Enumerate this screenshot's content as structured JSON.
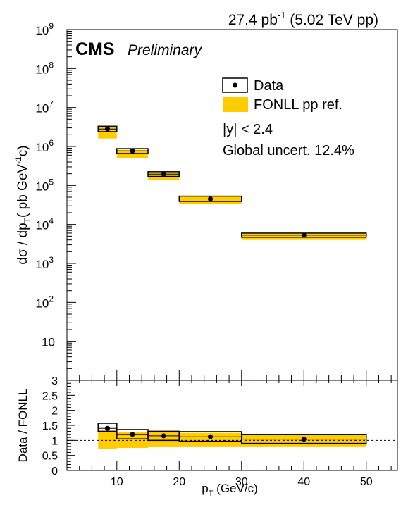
{
  "header": {
    "lumi_main": "27.4 pb",
    "lumi_sup": "-1",
    "lumi_rest": " (5.02 TeV pp)"
  },
  "labels": {
    "cms": "CMS",
    "preliminary": "Preliminary",
    "legend_data": "Data",
    "legend_fonll": "FONLL pp ref.",
    "rapidity": "|y| < 2.4",
    "global_uncert": "Global uncert. 12.4%"
  },
  "colors": {
    "fonll": "#ffcc00",
    "data": "#000000"
  },
  "chart_data": [
    {
      "type": "scatter",
      "name": "cross-section",
      "ylabel_parts": [
        "dσ / dp",
        "T",
        "( pb GeV",
        "-1",
        "c)"
      ],
      "yscale": "log",
      "ylim": [
        1,
        1000000000
      ],
      "xlim": [
        2,
        55
      ],
      "y_tick_labels": [
        "10",
        "10",
        "10",
        "10",
        "10",
        "10",
        "10",
        "10",
        "10"
      ],
      "y_tick_exponents": [
        "",
        "2",
        "3",
        "4",
        "5",
        "6",
        "7",
        "8",
        "9"
      ],
      "bins": [
        {
          "xlo": 7,
          "xhi": 10,
          "x": 8.5,
          "y": 2800000,
          "syst_lo": 2400000,
          "syst_hi": 3300000,
          "fonll_lo": 1600000,
          "fonll_hi": 3200000
        },
        {
          "xlo": 10,
          "xhi": 15,
          "x": 12.5,
          "y": 770000,
          "syst_lo": 660000,
          "syst_hi": 880000,
          "fonll_lo": 500000,
          "fonll_hi": 820000
        },
        {
          "xlo": 15,
          "xhi": 20,
          "x": 17.5,
          "y": 195000,
          "syst_lo": 170000,
          "syst_hi": 225000,
          "fonll_lo": 140000,
          "fonll_hi": 215000
        },
        {
          "xlo": 20,
          "xhi": 30,
          "x": 25,
          "y": 45000,
          "syst_lo": 39000,
          "syst_hi": 53000,
          "fonll_lo": 34000,
          "fonll_hi": 52000
        },
        {
          "xlo": 30,
          "xhi": 50,
          "x": 40,
          "y": 5300,
          "syst_lo": 4700,
          "syst_hi": 6000,
          "fonll_lo": 4000,
          "fonll_hi": 6000
        }
      ]
    },
    {
      "type": "scatter",
      "name": "ratio",
      "xlabel_parts": [
        "p",
        "T",
        " (GeV/c)"
      ],
      "ylabel": "Data / FONLL",
      "ylim": [
        0,
        3
      ],
      "xlim": [
        2,
        55
      ],
      "y_ticks": [
        0,
        0.5,
        1,
        1.5,
        2,
        2.5,
        3
      ],
      "y_tick_labels": [
        "0",
        "0.5",
        "1",
        "1.5",
        "2",
        "2.5",
        "3"
      ],
      "x_ticks": [
        10,
        20,
        30,
        40,
        50
      ],
      "x_tick_labels": [
        "10",
        "20",
        "30",
        "40",
        "50"
      ],
      "reference_line": 1,
      "bins": [
        {
          "xlo": 7,
          "xhi": 10,
          "x": 8.5,
          "y": 1.4,
          "syst_lo": 1.3,
          "syst_hi": 1.57,
          "fonll_lo": 0.72,
          "fonll_hi": 1.36
        },
        {
          "xlo": 10,
          "xhi": 15,
          "x": 12.5,
          "y": 1.2,
          "syst_lo": 1.05,
          "syst_hi": 1.36,
          "fonll_lo": 0.75,
          "fonll_hi": 1.27
        },
        {
          "xlo": 15,
          "xhi": 20,
          "x": 17.5,
          "y": 1.15,
          "syst_lo": 1.0,
          "syst_hi": 1.3,
          "fonll_lo": 0.78,
          "fonll_hi": 1.33
        },
        {
          "xlo": 20,
          "xhi": 30,
          "x": 25,
          "y": 1.12,
          "syst_lo": 0.97,
          "syst_hi": 1.29,
          "fonll_lo": 0.8,
          "fonll_hi": 1.25
        },
        {
          "xlo": 30,
          "xhi": 50,
          "x": 40,
          "y": 1.04,
          "syst_lo": 0.9,
          "syst_hi": 1.2,
          "fonll_lo": 0.8,
          "fonll_hi": 1.2
        }
      ]
    }
  ]
}
